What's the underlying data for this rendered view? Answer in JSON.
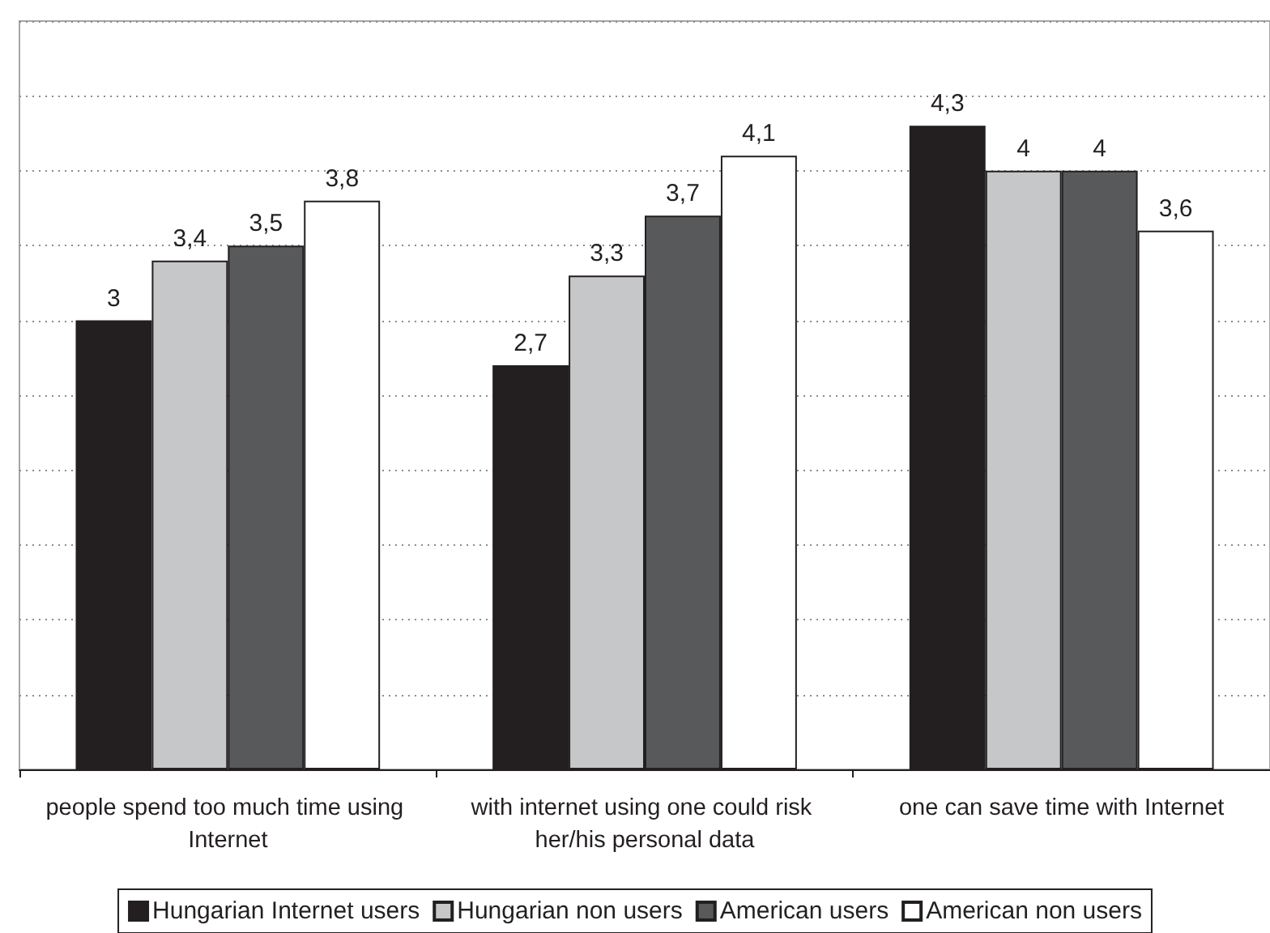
{
  "chart_data": {
    "type": "bar",
    "categories": [
      "people spend too much time using Internet",
      "with internet using one could risk her/his personal data",
      "one can save time with Internet"
    ],
    "series": [
      {
        "name": "Hungarian Internet users",
        "color": "#231f20",
        "values": [
          3,
          2.7,
          4.3
        ],
        "value_labels": [
          "3",
          "2,7",
          "4,3"
        ]
      },
      {
        "name": "Hungarian non users",
        "color": "#c6c7c9",
        "values": [
          3.4,
          3.3,
          4
        ],
        "value_labels": [
          "3,4",
          "3,3",
          "4"
        ]
      },
      {
        "name": "American users",
        "color": "#58595b",
        "values": [
          3.5,
          3.7,
          4
        ],
        "value_labels": [
          "3,5",
          "3,7",
          "4"
        ]
      },
      {
        "name": "American non users",
        "color": "#ffffff",
        "values": [
          3.8,
          4.1,
          3.6
        ],
        "value_labels": [
          "3,8",
          "4,1",
          "3,6"
        ]
      }
    ],
    "ylim": [
      0,
      5
    ],
    "yticks": [
      {
        "value": 0,
        "label": null
      },
      {
        "value": 0.5,
        "label": null
      },
      {
        "value": 1,
        "label": null
      },
      {
        "value": 1.5,
        "label": null
      },
      {
        "value": 2,
        "label": null
      },
      {
        "value": 2.5,
        "label": null
      },
      {
        "value": 3,
        "label": null
      },
      {
        "value": 3.5,
        "label": null
      },
      {
        "value": 4,
        "label": null
      },
      {
        "value": 4.5,
        "label": null
      },
      {
        "value": 5,
        "label": null
      }
    ],
    "tick_labels": "x",
    "grid": "y",
    "legend": "bottom"
  }
}
